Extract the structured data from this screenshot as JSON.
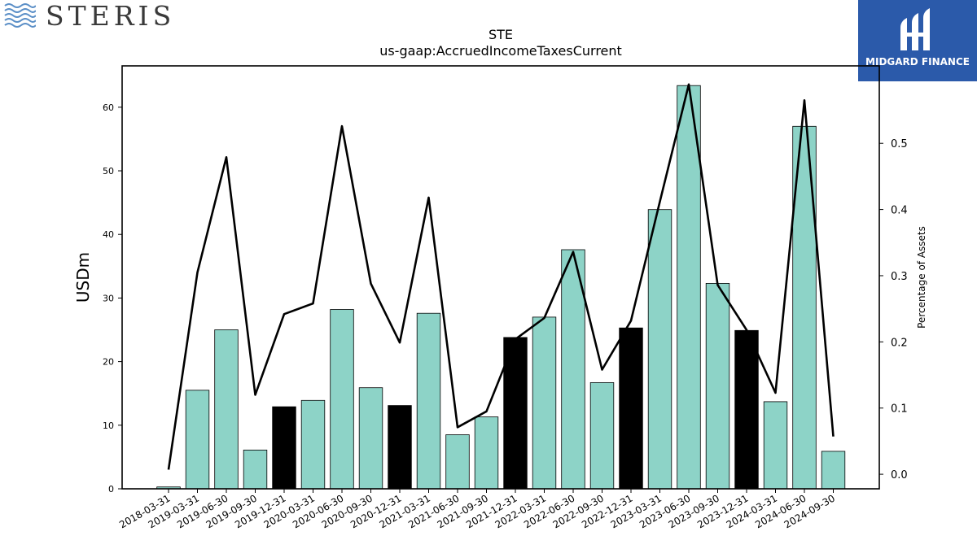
{
  "logos": {
    "left_text": "STERIS",
    "right_text": "MIDGARD FINANCE"
  },
  "chart_data": {
    "type": "bar",
    "title": "STE",
    "subtitle": "us-gaap:AccruedIncomeTaxesCurrent",
    "ylabel": "USDm",
    "y2label": "Percentage of Assets",
    "ylim": [
      0,
      66.5
    ],
    "y2lim": [
      -0.022,
      0.617
    ],
    "yticks": [
      0,
      10,
      20,
      30,
      40,
      50,
      60
    ],
    "y2ticks": [
      "0.0",
      "0.1",
      "0.2",
      "0.3",
      "0.4",
      "0.5"
    ],
    "categories": [
      "2018-03-31",
      "2019-03-31",
      "2019-06-30",
      "2019-09-30",
      "2019-12-31",
      "2020-03-31",
      "2020-06-30",
      "2020-09-30",
      "2020-12-31",
      "2021-03-31",
      "2021-06-30",
      "2021-09-30",
      "2021-12-31",
      "2022-03-31",
      "2022-06-30",
      "2022-09-30",
      "2022-12-31",
      "2023-03-31",
      "2023-06-30",
      "2023-09-30",
      "2023-12-31",
      "2024-03-31",
      "2024-06-30",
      "2024-09-30"
    ],
    "series": [
      {
        "kind": "bar",
        "values": [
          0.3,
          15.5,
          25.0,
          6.1,
          12.9,
          13.9,
          28.2,
          15.9,
          13.1,
          27.6,
          8.5,
          11.3,
          23.8,
          27.0,
          37.6,
          16.7,
          25.3,
          43.9,
          63.4,
          32.3,
          24.9,
          13.7,
          57.0,
          5.9
        ],
        "highlight": [
          false,
          false,
          false,
          false,
          true,
          false,
          false,
          false,
          true,
          false,
          false,
          false,
          true,
          false,
          false,
          false,
          true,
          false,
          false,
          false,
          true,
          false,
          false,
          false
        ]
      },
      {
        "kind": "line",
        "axis": "right",
        "values": [
          0.007,
          0.305,
          0.479,
          0.12,
          0.242,
          0.258,
          0.526,
          0.288,
          0.199,
          0.418,
          0.071,
          0.095,
          0.204,
          0.236,
          0.336,
          0.158,
          0.232,
          0.412,
          0.589,
          0.286,
          0.218,
          0.123,
          0.565,
          0.057
        ]
      }
    ],
    "colors": {
      "bar": "#8dd3c7",
      "bar_highlight": "#000000",
      "line": "#000000"
    }
  }
}
